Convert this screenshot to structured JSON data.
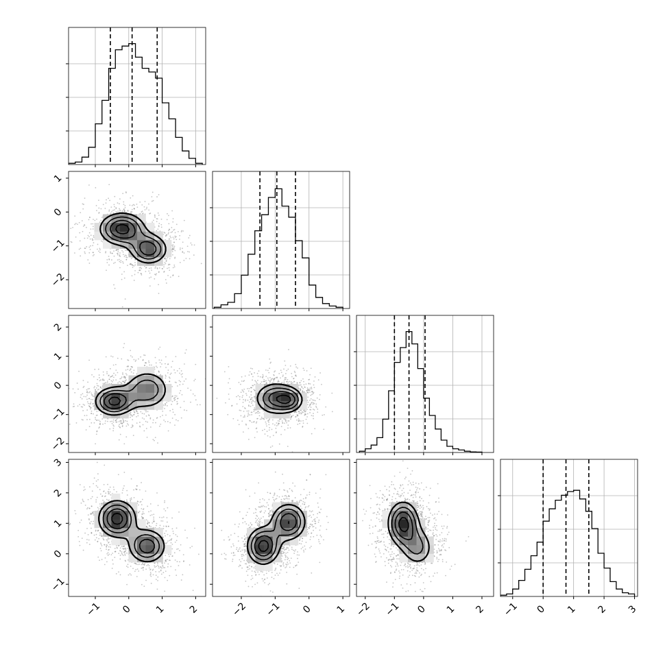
{
  "figure": {
    "type": "corner_plot",
    "n_params": 4
  },
  "chart_data": {
    "type": "corner",
    "title": "",
    "params": [
      {
        "range": [
          -1.8,
          2.3
        ],
        "ticks": [
          -1,
          0,
          1,
          2
        ],
        "tick_labels": [
          "−1",
          "0",
          "1",
          "2"
        ],
        "quantiles": [
          -0.55,
          0.1,
          0.85
        ]
      },
      {
        "range": [
          -2.85,
          1.2
        ],
        "ticks": [
          -2,
          -1,
          0,
          1
        ],
        "tick_labels": [
          "−2",
          "−1",
          "0",
          "1"
        ],
        "quantiles": [
          -1.45,
          -0.95,
          -0.4
        ]
      },
      {
        "range": [
          -2.3,
          2.4
        ],
        "ticks": [
          -2,
          -1,
          0,
          1,
          2
        ],
        "tick_labels": [
          "−2",
          "−1",
          "0",
          "1",
          "2"
        ],
        "quantiles": [
          -1.0,
          -0.5,
          0.05
        ]
      },
      {
        "range": [
          -1.4,
          3.1
        ],
        "ticks": [
          -1,
          0,
          1,
          2,
          3
        ],
        "tick_labels": [
          "−1",
          "0",
          "1",
          "2",
          "3"
        ],
        "quantiles": [
          0.0,
          0.75,
          1.5
        ]
      }
    ],
    "histograms": [
      {
        "param": 0,
        "bin_edges": [
          -1.8,
          -1.6,
          -1.4,
          -1.2,
          -1.0,
          -0.8,
          -0.6,
          -0.4,
          -0.2,
          0.0,
          0.2,
          0.4,
          0.6,
          0.8,
          1.0,
          1.2,
          1.4,
          1.6,
          1.8,
          2.0,
          2.2
        ],
        "counts": [
          0.01,
          0.02,
          0.06,
          0.14,
          0.33,
          0.52,
          0.78,
          0.93,
          0.96,
          0.98,
          0.87,
          0.78,
          0.75,
          0.7,
          0.5,
          0.37,
          0.22,
          0.11,
          0.05,
          0.01
        ]
      },
      {
        "param": 1,
        "bin_edges": [
          -2.8,
          -2.6,
          -2.4,
          -2.2,
          -2.0,
          -1.8,
          -1.6,
          -1.4,
          -1.2,
          -1.0,
          -0.8,
          -0.6,
          -0.4,
          -0.2,
          0.0,
          0.2,
          0.4,
          0.6,
          0.8,
          1.0
        ],
        "counts": [
          0.01,
          0.03,
          0.05,
          0.12,
          0.27,
          0.44,
          0.63,
          0.76,
          0.9,
          0.97,
          0.83,
          0.74,
          0.55,
          0.41,
          0.19,
          0.09,
          0.04,
          0.02,
          0.01
        ]
      },
      {
        "param": 2,
        "bin_edges": [
          -2.2,
          -2.0,
          -1.8,
          -1.6,
          -1.4,
          -1.2,
          -1.0,
          -0.8,
          -0.6,
          -0.4,
          -0.2,
          0.0,
          0.2,
          0.4,
          0.6,
          0.8,
          1.0,
          1.2,
          1.4,
          1.6,
          1.8,
          2.0
        ],
        "counts": [
          0.01,
          0.03,
          0.06,
          0.12,
          0.27,
          0.5,
          0.73,
          0.85,
          0.98,
          0.88,
          0.68,
          0.44,
          0.3,
          0.19,
          0.1,
          0.05,
          0.03,
          0.02,
          0.01,
          0.005,
          0.003
        ]
      },
      {
        "param": 3,
        "bin_edges": [
          -1.4,
          -1.2,
          -1.0,
          -0.8,
          -0.6,
          -0.4,
          -0.2,
          0.0,
          0.2,
          0.4,
          0.6,
          0.8,
          1.0,
          1.2,
          1.4,
          1.6,
          1.8,
          2.0,
          2.2,
          2.4,
          2.6,
          2.8,
          3.0
        ],
        "counts": [
          0.01,
          0.02,
          0.06,
          0.13,
          0.22,
          0.33,
          0.44,
          0.61,
          0.71,
          0.78,
          0.82,
          0.85,
          0.86,
          0.79,
          0.69,
          0.55,
          0.35,
          0.23,
          0.12,
          0.06,
          0.03,
          0.02
        ]
      }
    ],
    "pairs": [
      {
        "x": 0,
        "y": 1,
        "modes": [
          {
            "x": -0.2,
            "y": -0.5,
            "sx": 0.42,
            "sy": 0.3,
            "w": 1.0
          },
          {
            "x": 0.6,
            "y": -1.1,
            "sx": 0.35,
            "sy": 0.28,
            "w": 0.85
          }
        ],
        "contours": [
          0.3,
          0.5,
          0.7,
          0.9
        ]
      },
      {
        "x": 0,
        "y": 2,
        "modes": [
          {
            "x": -0.45,
            "y": -0.55,
            "sx": 0.35,
            "sy": 0.3,
            "w": 1.0
          },
          {
            "x": 0.55,
            "y": -0.15,
            "sx": 0.42,
            "sy": 0.42,
            "w": 0.7
          }
        ],
        "contours": [
          0.3,
          0.5,
          0.7,
          0.9
        ]
      },
      {
        "x": 1,
        "y": 2,
        "modes": [
          {
            "x": -1.0,
            "y": -0.45,
            "sx": 0.38,
            "sy": 0.35,
            "w": 1.0
          },
          {
            "x": -0.55,
            "y": -0.5,
            "sx": 0.25,
            "sy": 0.25,
            "w": 0.7
          }
        ],
        "contours": [
          0.3,
          0.5,
          0.7,
          0.9
        ]
      },
      {
        "x": 0,
        "y": 3,
        "modes": [
          {
            "x": -0.35,
            "y": 1.15,
            "sx": 0.35,
            "sy": 0.38,
            "w": 1.0
          },
          {
            "x": 0.55,
            "y": 0.25,
            "sx": 0.35,
            "sy": 0.35,
            "w": 0.85
          }
        ],
        "contours": [
          0.3,
          0.5,
          0.7,
          0.9
        ]
      },
      {
        "x": 1,
        "y": 3,
        "modes": [
          {
            "x": -1.35,
            "y": 0.25,
            "sx": 0.3,
            "sy": 0.38,
            "w": 1.0
          },
          {
            "x": -0.6,
            "y": 1.05,
            "sx": 0.32,
            "sy": 0.38,
            "w": 0.9
          }
        ],
        "contours": [
          0.3,
          0.5,
          0.7,
          0.9
        ]
      },
      {
        "x": 2,
        "y": 3,
        "modes": [
          {
            "x": -0.7,
            "y": 1.0,
            "sx": 0.33,
            "sy": 0.45,
            "w": 1.0
          },
          {
            "x": -0.2,
            "y": 0.2,
            "sx": 0.35,
            "sy": 0.4,
            "w": 0.55
          }
        ],
        "contours": [
          0.3,
          0.5,
          0.7,
          0.9
        ]
      }
    ],
    "grid": true,
    "legend": "none",
    "xlabel": "",
    "ylabel": ""
  }
}
